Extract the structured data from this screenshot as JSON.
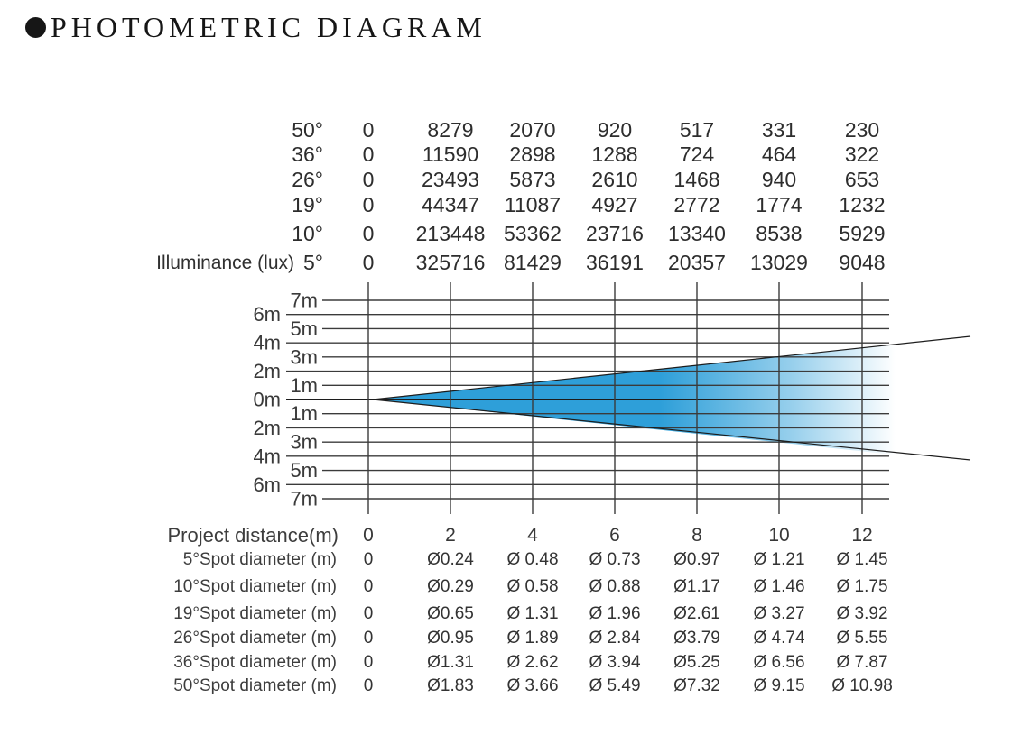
{
  "title": "PHOTOMETRIC DIAGRAM",
  "colors": {
    "beam": "#2e9fd9",
    "grid_line": "#3b3b3b",
    "axis_line": "#1c1c1c",
    "text_dark": "#2d2d2d",
    "text_gray": "#3d3d3d"
  },
  "illuminance_table": {
    "unit_label": "Illuminance (lux)",
    "rows": [
      {
        "angle": "50°",
        "values": [
          "0",
          "8279",
          "2070",
          "920",
          "517",
          "331",
          "230"
        ]
      },
      {
        "angle": "36°",
        "values": [
          "0",
          "11590",
          "2898",
          "1288",
          "724",
          "464",
          "322"
        ]
      },
      {
        "angle": "26°",
        "values": [
          "0",
          "23493",
          "5873",
          "2610",
          "1468",
          "940",
          "653"
        ]
      },
      {
        "angle": "19°",
        "values": [
          "0",
          "44347",
          "11087",
          "4927",
          "2772",
          "1774",
          "1232"
        ]
      },
      {
        "angle": "10°",
        "values": [
          "0",
          "213448",
          "53362",
          "23716",
          "13340",
          "8538",
          "5929"
        ]
      },
      {
        "angle": "5°",
        "values": [
          "0",
          "325716",
          "81429",
          "36191",
          "20357",
          "13029",
          "9048"
        ]
      }
    ]
  },
  "chart": {
    "meter_labels": [
      "7m",
      "6m",
      "5m",
      "4m",
      "3m",
      "2m",
      "1m",
      "0m",
      "1m",
      "2m",
      "3m",
      "4m",
      "5m",
      "6m",
      "7m"
    ],
    "distance_axis": {
      "label": "Project distance(m)",
      "ticks": [
        "0",
        "2",
        "4",
        "6",
        "8",
        "10",
        "12"
      ]
    }
  },
  "spot_table": {
    "rows": [
      {
        "label": "5°Spot diameter (m)",
        "values": [
          "0",
          "Ø0.24",
          "Ø 0.48",
          "Ø 0.73",
          "Ø0.97",
          "Ø 1.21",
          "Ø 1.45"
        ]
      },
      {
        "label": "10°Spot diameter (m)",
        "values": [
          "0",
          "Ø0.29",
          "Ø 0.58",
          "Ø 0.88",
          "Ø1.17",
          "Ø 1.46",
          "Ø 1.75"
        ]
      },
      {
        "label": "19°Spot diameter (m)",
        "values": [
          "0",
          "Ø0.65",
          "Ø 1.31",
          "Ø 1.96",
          "Ø2.61",
          "Ø 3.27",
          "Ø 3.92"
        ]
      },
      {
        "label": "26°Spot diameter (m)",
        "values": [
          "0",
          "Ø0.95",
          "Ø 1.89",
          "Ø 2.84",
          "Ø3.79",
          "Ø 4.74",
          "Ø 5.55"
        ]
      },
      {
        "label": "36°Spot diameter (m)",
        "values": [
          "0",
          "Ø1.31",
          "Ø 2.62",
          "Ø 3.94",
          "Ø5.25",
          "Ø 6.56",
          "Ø 7.87"
        ]
      },
      {
        "label": "50°Spot diameter (m)",
        "values": [
          "0",
          "Ø1.83",
          "Ø 3.66",
          "Ø 5.49",
          "Ø7.32",
          "Ø 9.15",
          "Ø 10.98"
        ]
      }
    ]
  },
  "chart_data": {
    "type": "table",
    "title": "PHOTOMETRIC DIAGRAM",
    "project_distance_m": [
      0,
      2,
      4,
      6,
      8,
      10,
      12
    ],
    "beam_angles_deg": [
      5,
      10,
      19,
      26,
      36,
      50
    ],
    "illuminance_lux_by_angle": {
      "50": [
        0,
        8279,
        2070,
        920,
        517,
        331,
        230
      ],
      "36": [
        0,
        11590,
        2898,
        1288,
        724,
        464,
        322
      ],
      "26": [
        0,
        23493,
        5873,
        2610,
        1468,
        940,
        653
      ],
      "19": [
        0,
        44347,
        11087,
        4927,
        2772,
        1774,
        1232
      ],
      "10": [
        0,
        213448,
        53362,
        23716,
        13340,
        8538,
        5929
      ],
      "5": [
        0,
        325716,
        81429,
        36191,
        20357,
        13029,
        9048
      ]
    },
    "spot_diameter_m_by_angle": {
      "5": [
        0,
        0.24,
        0.48,
        0.73,
        0.97,
        1.21,
        1.45
      ],
      "10": [
        0,
        0.29,
        0.58,
        0.88,
        1.17,
        1.46,
        1.75
      ],
      "19": [
        0,
        0.65,
        1.31,
        1.96,
        2.61,
        3.27,
        3.92
      ],
      "26": [
        0,
        0.95,
        1.89,
        2.84,
        3.79,
        4.74,
        5.55
      ],
      "36": [
        0,
        1.31,
        2.62,
        3.94,
        5.25,
        6.56,
        7.87
      ],
      "50": [
        0,
        1.83,
        3.66,
        5.49,
        7.32,
        9.15,
        10.98
      ]
    },
    "beam_diagram": {
      "y_axis_m": [
        7,
        6,
        5,
        4,
        3,
        2,
        1,
        0,
        1,
        2,
        3,
        4,
        5,
        6,
        7
      ],
      "grid": true,
      "beam_color": "#2e9fd9",
      "beam_apex_at_distance_m": 0,
      "beam_fill_fades_to_white_toward": "right"
    }
  }
}
